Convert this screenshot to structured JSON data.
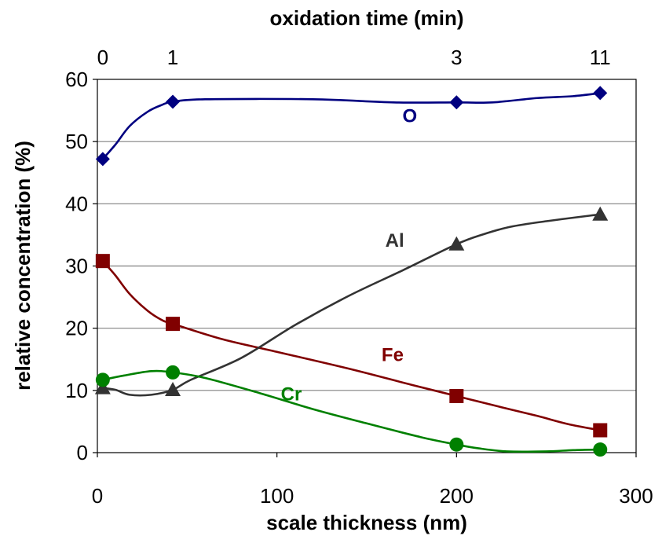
{
  "chart_data": {
    "type": "line",
    "title": "",
    "xlabel": "scale thickness (nm)",
    "ylabel": "relative concentration (%)",
    "x2label": "oxidation time (min)",
    "xlim": [
      0,
      300
    ],
    "ylim": [
      0,
      60
    ],
    "x_ticks": [
      "0",
      "100",
      "200",
      "300"
    ],
    "y_ticks": [
      "0",
      "10",
      "20",
      "30",
      "40",
      "50",
      "60"
    ],
    "x2_ticks": [
      {
        "label": "0",
        "x": 3
      },
      {
        "label": "1",
        "x": 42
      },
      {
        "label": "3",
        "x": 200
      },
      {
        "label": "11",
        "x": 280
      }
    ],
    "grid": "horizontal",
    "series": [
      {
        "name": "O",
        "marker": "diamond",
        "color": "#000080",
        "points": [
          [
            3,
            47.2
          ],
          [
            42,
            56.4
          ],
          [
            200,
            56.3
          ],
          [
            280,
            57.8
          ]
        ],
        "curve": [
          [
            3,
            47.2
          ],
          [
            10,
            49.5
          ],
          [
            18,
            52.5
          ],
          [
            28,
            54.8
          ],
          [
            36,
            55.9
          ],
          [
            42,
            56.4
          ],
          [
            60,
            56.8
          ],
          [
            120,
            56.8
          ],
          [
            165,
            56.3
          ],
          [
            200,
            56.3
          ],
          [
            220,
            56.3
          ],
          [
            245,
            57.0
          ],
          [
            265,
            57.3
          ],
          [
            280,
            57.8
          ]
        ]
      },
      {
        "name": "Fe",
        "marker": "square",
        "color": "#800000",
        "points": [
          [
            3,
            30.8
          ],
          [
            42,
            20.7
          ],
          [
            200,
            9.1
          ],
          [
            280,
            3.6
          ]
        ],
        "curve": [
          [
            3,
            30.8
          ],
          [
            10,
            28.5
          ],
          [
            18,
            25.5
          ],
          [
            28,
            22.8
          ],
          [
            36,
            21.3
          ],
          [
            42,
            20.7
          ],
          [
            70,
            18.2
          ],
          [
            100,
            16.2
          ],
          [
            140,
            13.5
          ],
          [
            175,
            10.9
          ],
          [
            200,
            9.1
          ],
          [
            225,
            7.3
          ],
          [
            245,
            5.9
          ],
          [
            262,
            4.6
          ],
          [
            280,
            3.6
          ]
        ]
      },
      {
        "name": "Al",
        "marker": "triangle",
        "color": "#333333",
        "points": [
          [
            3,
            10.4
          ],
          [
            42,
            10.1
          ],
          [
            200,
            33.5
          ],
          [
            280,
            38.3
          ]
        ],
        "curve": [
          [
            3,
            10.4
          ],
          [
            10,
            10.1
          ],
          [
            18,
            9.3
          ],
          [
            30,
            9.3
          ],
          [
            42,
            10.1
          ],
          [
            52,
            11.7
          ],
          [
            80,
            15.2
          ],
          [
            110,
            20.5
          ],
          [
            140,
            25.2
          ],
          [
            170,
            29.3
          ],
          [
            200,
            33.5
          ],
          [
            215,
            35.1
          ],
          [
            230,
            36.3
          ],
          [
            250,
            37.2
          ],
          [
            280,
            38.3
          ]
        ]
      },
      {
        "name": "Cr",
        "marker": "circle",
        "color": "#008000",
        "points": [
          [
            3,
            11.7
          ],
          [
            42,
            12.9
          ],
          [
            200,
            1.3
          ],
          [
            280,
            0.5
          ]
        ],
        "curve": [
          [
            3,
            11.7
          ],
          [
            15,
            12.4
          ],
          [
            30,
            13.1
          ],
          [
            42,
            12.9
          ],
          [
            60,
            12.0
          ],
          [
            90,
            9.6
          ],
          [
            120,
            7.0
          ],
          [
            150,
            4.7
          ],
          [
            180,
            2.5
          ],
          [
            200,
            1.3
          ],
          [
            212,
            0.7
          ],
          [
            228,
            0.2
          ],
          [
            250,
            0.2
          ],
          [
            265,
            0.4
          ],
          [
            280,
            0.5
          ]
        ]
      }
    ]
  }
}
